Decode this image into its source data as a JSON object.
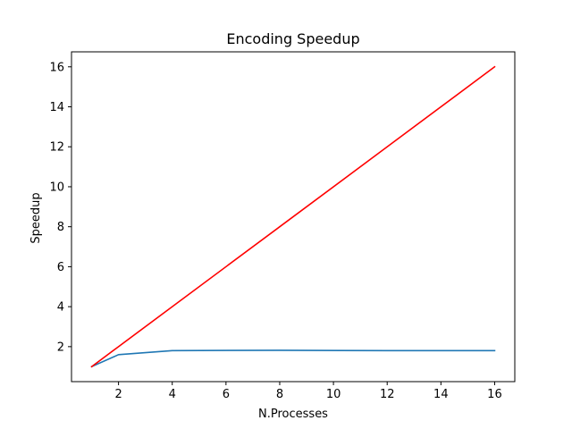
{
  "chart_data": {
    "type": "line",
    "title": "Encoding Speedup",
    "xlabel": "N.Processes",
    "ylabel": "Speedup",
    "xlim": [
      0.25,
      16.75
    ],
    "ylim": [
      0.25,
      16.75
    ],
    "xticks": [
      2,
      4,
      6,
      8,
      10,
      12,
      14,
      16
    ],
    "yticks": [
      2,
      4,
      6,
      8,
      10,
      12,
      14,
      16
    ],
    "grid": false,
    "series": [
      {
        "color": "#1f77b4",
        "x": [
          1,
          2,
          4,
          8,
          12,
          16
        ],
        "y": [
          1.0,
          1.6,
          1.8,
          1.82,
          1.8,
          1.8
        ]
      },
      {
        "color": "#ff0000",
        "x": [
          1,
          2,
          4,
          8,
          12,
          16
        ],
        "y": [
          1,
          2,
          4,
          8,
          12,
          16
        ]
      }
    ]
  }
}
